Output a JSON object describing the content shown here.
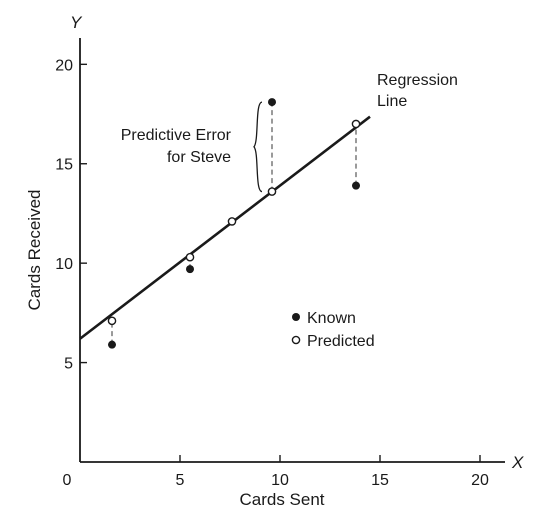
{
  "chart_data": {
    "type": "scatter",
    "xlabel": "Cards Sent",
    "ylabel": "Cards Received",
    "x_axis_letter": "X",
    "y_axis_letter": "Y",
    "xlim": [
      0,
      22
    ],
    "ylim": [
      0,
      21.5
    ],
    "x_ticks": [
      0,
      5,
      10,
      15,
      20
    ],
    "y_ticks": [
      5,
      10,
      15,
      20
    ],
    "grid": false,
    "regression_line": {
      "label": "Regression\nLine",
      "intercept": 6.2,
      "slope": 0.77,
      "x_start": 0,
      "x_end": 14.5
    },
    "series": [
      {
        "name": "Known",
        "marker": "filled-circle",
        "points": [
          [
            1.6,
            5.9
          ],
          [
            5.5,
            9.7
          ],
          [
            9.6,
            18.1
          ],
          [
            13.8,
            13.9
          ]
        ]
      },
      {
        "name": "Predicted",
        "marker": "open-circle",
        "points": [
          [
            1.6,
            7.1
          ],
          [
            5.5,
            10.3
          ],
          [
            7.6,
            12.1
          ],
          [
            9.6,
            13.6
          ],
          [
            13.8,
            17.0
          ]
        ]
      }
    ],
    "errors": [
      {
        "x": 1.6,
        "from": 5.9,
        "to": 7.1
      },
      {
        "x": 5.5,
        "from": 9.7,
        "to": 10.3
      },
      {
        "x": 9.6,
        "from": 13.6,
        "to": 18.1
      },
      {
        "x": 13.8,
        "from": 13.9,
        "to": 17.0
      }
    ],
    "annotation": {
      "text_line1": "Predictive Error",
      "text_line2": "for Steve",
      "x": 9.6,
      "y_from": 13.6,
      "y_to": 18.1
    },
    "legend": {
      "placement": "center-right",
      "known": "Known",
      "predicted": "Predicted"
    }
  },
  "colors": {
    "ink": "#1a1a1a",
    "dashed": "#9a9a9a",
    "background": "#ffffff"
  }
}
